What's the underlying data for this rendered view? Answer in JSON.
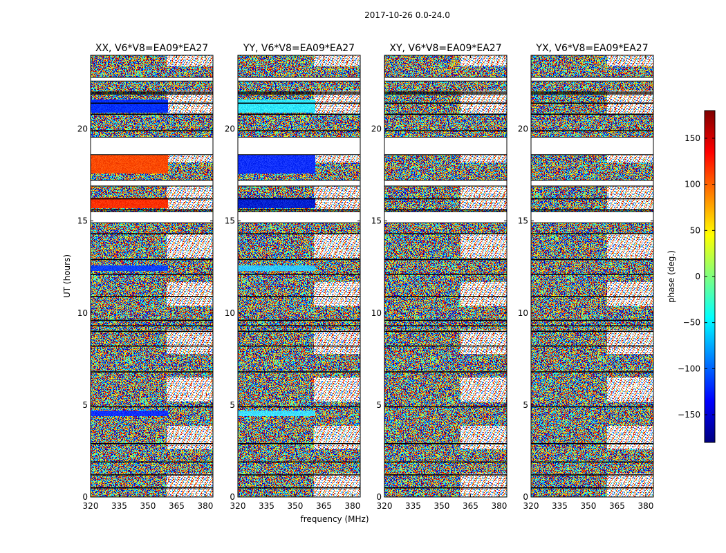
{
  "figure": {
    "suptitle": "2017-10-26 0.0-24.0"
  },
  "chart_data": {
    "type": "heatmap",
    "panels": [
      {
        "title": "XX, V6*V8=EA09*EA27",
        "ylabel": "UT (hours)",
        "xlabel": ""
      },
      {
        "title": "YY, V6*V8=EA09*EA27",
        "ylabel": "",
        "xlabel": "frequency (MHz)"
      },
      {
        "title": "XY, V6*V8=EA09*EA27",
        "ylabel": "",
        "xlabel": ""
      },
      {
        "title": "YX, V6*V8=EA09*EA27",
        "ylabel": "",
        "xlabel": ""
      }
    ],
    "xlim": [
      320,
      384
    ],
    "ylim": [
      0,
      24
    ],
    "xticks": [
      320,
      335,
      350,
      365,
      380
    ],
    "yticks": [
      0,
      5,
      10,
      15,
      20
    ],
    "colorbar": {
      "label": "phase (deg.)",
      "range": [
        -180,
        180
      ],
      "ticks": [
        -150,
        -100,
        -50,
        0,
        50,
        100,
        150
      ],
      "tick_labels": [
        "−150",
        "−100",
        "−50",
        "0",
        "50",
        "100",
        "150"
      ],
      "cmap": [
        "#00007f",
        "#0000ff",
        "#007fff",
        "#00ffff",
        "#7fff7f",
        "#ffff00",
        "#ff7f00",
        "#ff0000",
        "#7f0000"
      ]
    },
    "blank_ut_ranges": [
      [
        19.55,
        18.6
      ],
      [
        17.2,
        16.9
      ],
      [
        15.5,
        14.9
      ],
      [
        22.8,
        22.6
      ]
    ],
    "flagged_ut_hours": [
      0.5,
      1.2,
      1.9,
      2.9,
      4.9,
      6.8,
      8.2,
      9.0,
      9.3,
      9.6,
      10.9,
      12.1,
      12.9,
      14.3,
      15.6,
      16.2,
      19.9,
      20.8,
      21.4,
      21.9,
      22.0
    ],
    "smooth_bands_ut": [
      {
        "panel": 0,
        "from": 4.4,
        "to": 4.7,
        "color": "#1030ff"
      },
      {
        "panel": 0,
        "from": 12.3,
        "to": 12.6,
        "color": "#0a40ff"
      },
      {
        "panel": 0,
        "from": 15.7,
        "to": 16.3,
        "color": "#ff3000"
      },
      {
        "panel": 0,
        "from": 17.6,
        "to": 18.6,
        "color": "#ff4a00"
      },
      {
        "panel": 0,
        "from": 20.9,
        "to": 21.6,
        "color": "#0030ff"
      },
      {
        "panel": 1,
        "from": 4.4,
        "to": 4.7,
        "color": "#40e0ff"
      },
      {
        "panel": 1,
        "from": 12.3,
        "to": 12.6,
        "color": "#30c8ff"
      },
      {
        "panel": 1,
        "from": 15.7,
        "to": 16.3,
        "color": "#0020d0"
      },
      {
        "panel": 1,
        "from": 17.6,
        "to": 18.6,
        "color": "#1030ff"
      },
      {
        "panel": 1,
        "from": 20.9,
        "to": 21.6,
        "color": "#30e8ff"
      }
    ]
  }
}
